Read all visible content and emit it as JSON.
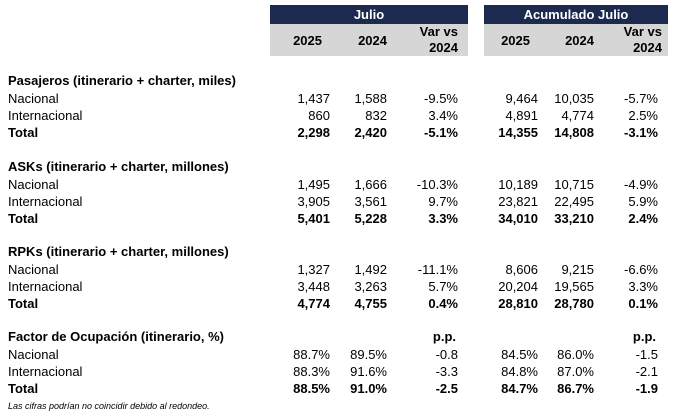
{
  "header": {
    "group1": "Julio",
    "group2": "Acumulado Julio",
    "col_2025": "2025",
    "col_2024": "2024",
    "var_line1": "Var vs",
    "var_line2": "2024"
  },
  "pp_label": "p.p.",
  "sections": [
    {
      "title": "Pasajeros (itinerario + charter, miles)",
      "rows": [
        {
          "label": "Nacional",
          "v": [
            "1,437",
            "1,588",
            "-9.5%",
            "9,464",
            "10,035",
            "-5.7%"
          ]
        },
        {
          "label": "Internacional",
          "v": [
            "860",
            "832",
            "3.4%",
            "4,891",
            "4,774",
            "2.5%"
          ]
        },
        {
          "label": "Total",
          "v": [
            "2,298",
            "2,420",
            "-5.1%",
            "14,355",
            "14,808",
            "-3.1%"
          ]
        }
      ]
    },
    {
      "title": "ASKs (itinerario + charter, millones)",
      "rows": [
        {
          "label": "Nacional",
          "v": [
            "1,495",
            "1,666",
            "-10.3%",
            "10,189",
            "10,715",
            "-4.9%"
          ]
        },
        {
          "label": "Internacional",
          "v": [
            "3,905",
            "3,561",
            "9.7%",
            "23,821",
            "22,495",
            "5.9%"
          ]
        },
        {
          "label": "Total",
          "v": [
            "5,401",
            "5,228",
            "3.3%",
            "34,010",
            "33,210",
            "2.4%"
          ]
        }
      ]
    },
    {
      "title": "RPKs (itinerario + charter, millones)",
      "rows": [
        {
          "label": "Nacional",
          "v": [
            "1,327",
            "1,492",
            "-11.1%",
            "8,606",
            "9,215",
            "-6.6%"
          ]
        },
        {
          "label": "Internacional",
          "v": [
            "3,448",
            "3,263",
            "5.7%",
            "20,204",
            "19,565",
            "3.3%"
          ]
        },
        {
          "label": "Total",
          "v": [
            "4,774",
            "4,755",
            "0.4%",
            "28,810",
            "28,780",
            "0.1%"
          ]
        }
      ]
    },
    {
      "title": "Factor de Ocupación (itinerario, %)",
      "rows": [
        {
          "label": "Nacional",
          "v": [
            "88.7%",
            "89.5%",
            "-0.8",
            "84.5%",
            "86.0%",
            "-1.5"
          ]
        },
        {
          "label": "Internacional",
          "v": [
            "88.3%",
            "91.6%",
            "-3.3",
            "84.8%",
            "87.0%",
            "-2.1"
          ]
        },
        {
          "label": "Total",
          "v": [
            "88.5%",
            "91.0%",
            "-2.5",
            "84.7%",
            "86.7%",
            "-1.9"
          ]
        }
      ]
    }
  ],
  "footnote": "Las cifras podrían no coincidir debido al redondeo."
}
